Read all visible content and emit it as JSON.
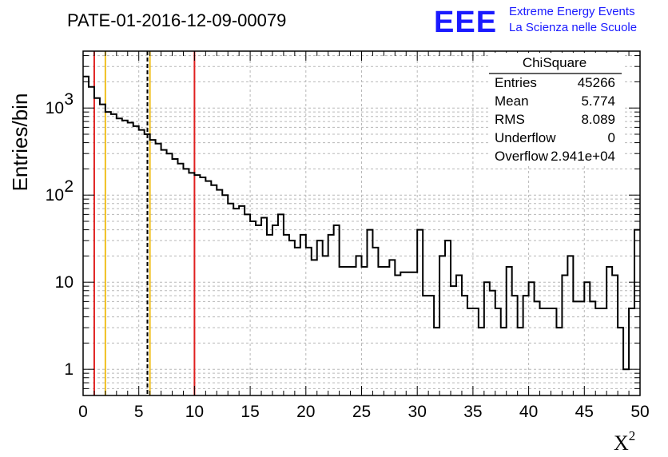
{
  "chart_data": {
    "type": "histogram",
    "title": "PATE-01-2016-12-09-00079",
    "xlabel": "X",
    "xlabel_exponent": "2",
    "ylabel": "Entries/bin",
    "xlim": [
      0,
      50
    ],
    "ylim": [
      0.5,
      4500
    ],
    "yscale": "log",
    "grid": true,
    "bin_width": 0.5,
    "bin_start": 0,
    "x_ticks": [
      "0",
      "5",
      "10",
      "15",
      "20",
      "25",
      "30",
      "35",
      "40",
      "45",
      "50"
    ],
    "y_ticks": [
      {
        "base": "1",
        "exp": ""
      },
      {
        "base": "10",
        "exp": ""
      },
      {
        "base": "10",
        "exp": "2"
      },
      {
        "base": "10",
        "exp": "3"
      }
    ],
    "values": [
      2300,
      1750,
      1300,
      1100,
      900,
      850,
      760,
      720,
      680,
      620,
      560,
      500,
      430,
      390,
      330,
      300,
      260,
      230,
      200,
      180,
      170,
      160,
      145,
      130,
      115,
      100,
      80,
      70,
      75,
      60,
      50,
      45,
      55,
      35,
      45,
      60,
      35,
      30,
      25,
      35,
      25,
      18,
      30,
      20,
      35,
      45,
      15,
      15,
      15,
      20,
      15,
      40,
      25,
      15,
      15,
      18,
      12,
      13,
      13,
      13,
      40,
      7,
      7,
      3,
      20,
      30,
      9,
      12,
      7,
      5,
      5,
      3,
      10,
      8,
      5,
      3,
      15,
      7,
      3,
      7,
      10,
      6,
      5,
      5,
      5,
      3,
      12,
      20,
      6,
      6,
      10,
      6,
      5,
      5,
      15,
      12,
      3,
      1,
      5,
      40
    ],
    "vlines": [
      {
        "x": 1,
        "color": "#e02020",
        "style": "solid"
      },
      {
        "x": 2,
        "color": "#f0c020",
        "style": "solid"
      },
      {
        "x": 5.774,
        "color": "#000000",
        "style": "dashed"
      },
      {
        "x": 6,
        "color": "#f0c020",
        "style": "solid"
      },
      {
        "x": 10,
        "color": "#e02020",
        "style": "solid"
      }
    ],
    "stats": {
      "name": "ChiSquare",
      "rows": [
        {
          "label": "Entries",
          "value": "45266"
        },
        {
          "label": "Mean",
          "value": "5.774"
        },
        {
          "label": "RMS",
          "value": "8.089"
        },
        {
          "label": "Underflow",
          "value": "0"
        },
        {
          "label": "Overflow",
          "value": "2.941e+04"
        }
      ]
    }
  },
  "logo": {
    "mark": "EEE",
    "line1": "Extreme Energy Events",
    "line2": "La Scienza nelle Scuole",
    "color": "#1a1aff"
  }
}
